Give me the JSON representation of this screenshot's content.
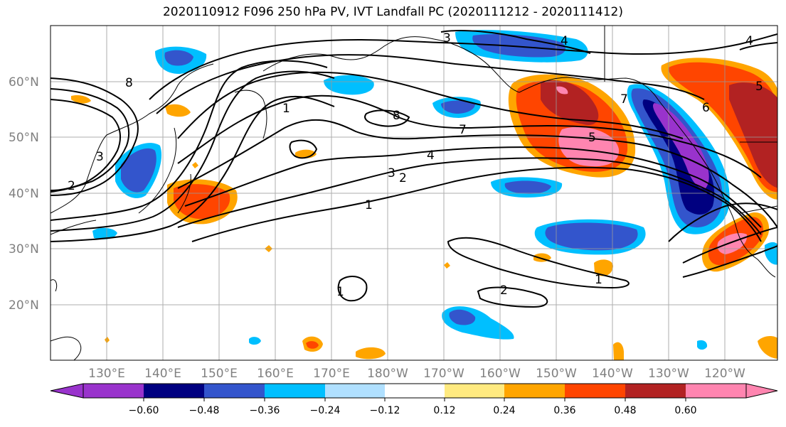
{
  "title": "2020110912 F096 250 hPa PV, IVT Landfall PC (2020111212 - 2020111412)",
  "lat_labels": [
    "60°N",
    "50°N",
    "40°N",
    "30°N",
    "20°N"
  ],
  "lon_labels": [
    "130°E",
    "140°E",
    "150°E",
    "160°E",
    "170°E",
    "180°W",
    "170°W",
    "160°W",
    "150°W",
    "140°W",
    "130°W",
    "120°W"
  ],
  "colorbar": {
    "colors": [
      "#9933cc",
      "#000080",
      "#3355cc",
      "#00bfff",
      "#b0e0ff",
      "#ffffff",
      "#ffea80",
      "#ffa500",
      "#ff4500",
      "#b22222",
      "#ff85b0"
    ],
    "tick_labels": [
      "-0.60",
      "-0.48",
      "-0.36",
      "-0.24",
      "-0.12",
      "0.12",
      "0.24",
      "0.36",
      "0.48",
      "0.60"
    ]
  },
  "contour_labels": [
    "3",
    "4",
    "4",
    "8",
    "7",
    "6",
    "5",
    "7",
    "4",
    "3",
    "2",
    "1",
    "1",
    "2",
    "1",
    "8",
    "5",
    "3",
    "2",
    "1"
  ]
}
